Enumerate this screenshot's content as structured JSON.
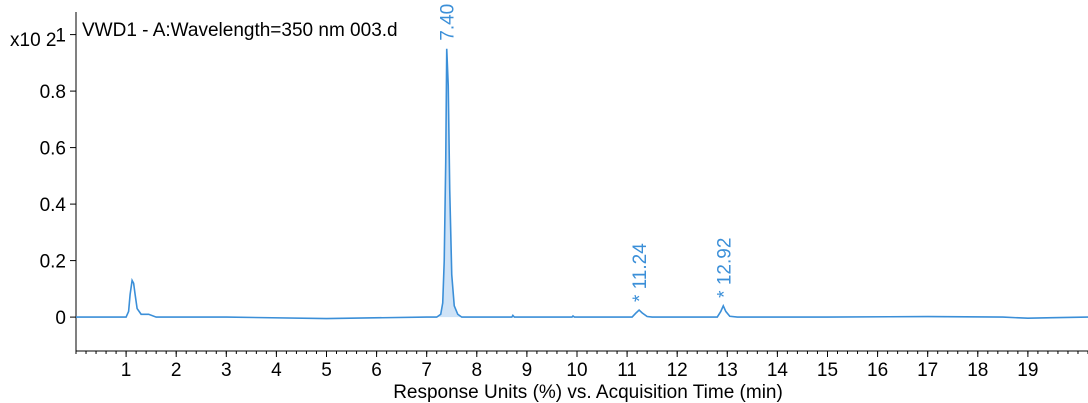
{
  "chart_data": {
    "type": "line",
    "title": "VWD1 - A:Wavelength=350 nm 003.d",
    "y_multiplier": "x10 2",
    "xlabel": "Response Units (%) vs. Acquisition Time (min)",
    "ylabel": "",
    "xlim": [
      0,
      20.2
    ],
    "ylim": [
      -0.12,
      1.08
    ],
    "x_ticks": [
      1,
      2,
      3,
      4,
      5,
      6,
      7,
      8,
      9,
      10,
      11,
      12,
      13,
      14,
      15,
      16,
      17,
      18,
      19
    ],
    "y_ticks": [
      0,
      0.2,
      0.4,
      0.6,
      0.8,
      1
    ],
    "y_tick_labels": [
      "0",
      "0.2",
      "0.4",
      "0.6",
      "0.8",
      "1"
    ],
    "series": [
      {
        "color": "#3b8fd8",
        "points": [
          [
            0.0,
            0.0
          ],
          [
            1.0,
            0.0
          ],
          [
            1.05,
            0.02
          ],
          [
            1.08,
            0.08
          ],
          [
            1.12,
            0.13
          ],
          [
            1.15,
            0.12
          ],
          [
            1.18,
            0.08
          ],
          [
            1.22,
            0.03
          ],
          [
            1.3,
            0.01
          ],
          [
            1.45,
            0.01
          ],
          [
            1.6,
            0.0
          ],
          [
            3.0,
            0.0
          ],
          [
            5.0,
            -0.005
          ],
          [
            7.0,
            0.0
          ],
          [
            7.2,
            0.0
          ],
          [
            7.28,
            0.01
          ],
          [
            7.32,
            0.05
          ],
          [
            7.35,
            0.2
          ],
          [
            7.38,
            0.55
          ],
          [
            7.4,
            0.95
          ],
          [
            7.43,
            0.82
          ],
          [
            7.46,
            0.45
          ],
          [
            7.5,
            0.15
          ],
          [
            7.55,
            0.04
          ],
          [
            7.62,
            0.01
          ],
          [
            7.7,
            0.0
          ],
          [
            8.7,
            0.0
          ],
          [
            8.72,
            0.006
          ],
          [
            8.75,
            0.0
          ],
          [
            9.9,
            0.0
          ],
          [
            9.92,
            0.004
          ],
          [
            9.95,
            0.0
          ],
          [
            11.1,
            0.0
          ],
          [
            11.18,
            0.015
          ],
          [
            11.24,
            0.025
          ],
          [
            11.3,
            0.015
          ],
          [
            11.4,
            0.002
          ],
          [
            11.5,
            0.0
          ],
          [
            12.8,
            0.0
          ],
          [
            12.87,
            0.02
          ],
          [
            12.92,
            0.04
          ],
          [
            12.97,
            0.02
          ],
          [
            13.05,
            0.003
          ],
          [
            13.2,
            0.0
          ],
          [
            15.0,
            0.0
          ],
          [
            17.0,
            0.002
          ],
          [
            18.5,
            0.0
          ],
          [
            19.0,
            -0.004
          ],
          [
            19.5,
            -0.002
          ],
          [
            20.2,
            0.0
          ]
        ]
      }
    ],
    "annotations": [
      {
        "text": "7.40",
        "x": 7.4,
        "y": 0.95
      },
      {
        "text": "* 11.24",
        "x": 11.24,
        "y": 0.025
      },
      {
        "text": "* 12.92",
        "x": 12.92,
        "y": 0.04
      }
    ]
  }
}
